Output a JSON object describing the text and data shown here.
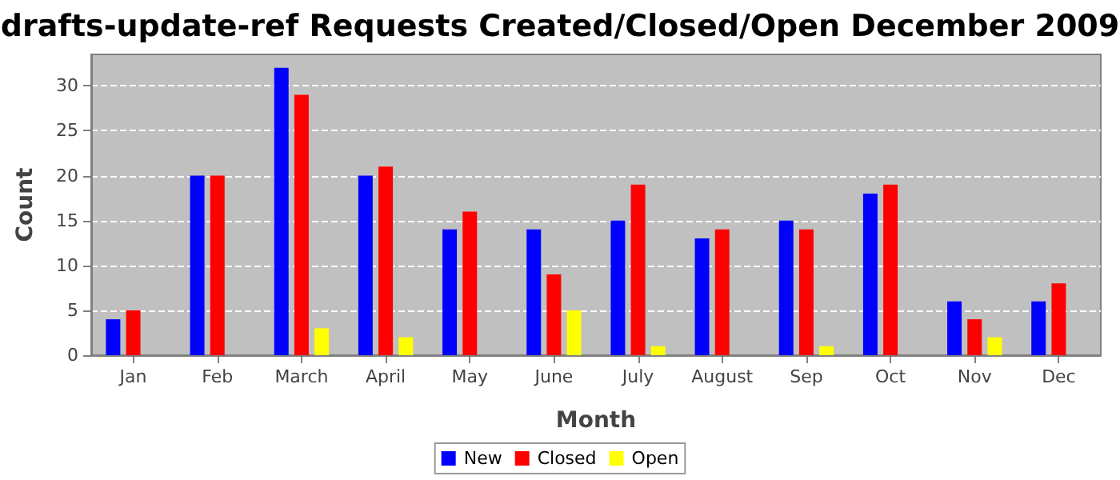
{
  "chart_data": {
    "type": "bar",
    "title": "drafts-update-ref Requests Created/Closed/Open December 2009",
    "xlabel": "Month",
    "ylabel": "Count",
    "categories": [
      "Jan",
      "Feb",
      "March",
      "April",
      "May",
      "June",
      "July",
      "August",
      "Sep",
      "Oct",
      "Nov",
      "Dec"
    ],
    "series": [
      {
        "name": "New",
        "color": "#0000ff",
        "values": [
          4,
          20,
          32,
          20,
          14,
          14,
          15,
          13,
          15,
          18,
          6,
          6
        ]
      },
      {
        "name": "Closed",
        "color": "#ff0000",
        "values": [
          5,
          20,
          29,
          21,
          16,
          9,
          19,
          14,
          14,
          19,
          4,
          8
        ]
      },
      {
        "name": "Open",
        "color": "#ffff00",
        "values": [
          0,
          0,
          3,
          2,
          0,
          5,
          1,
          0,
          1,
          0,
          2,
          0
        ]
      }
    ],
    "ylim": [
      0,
      33.5
    ],
    "yticks": [
      0,
      5,
      10,
      15,
      20,
      25,
      30
    ],
    "grid": "y",
    "legend": "bottom"
  }
}
